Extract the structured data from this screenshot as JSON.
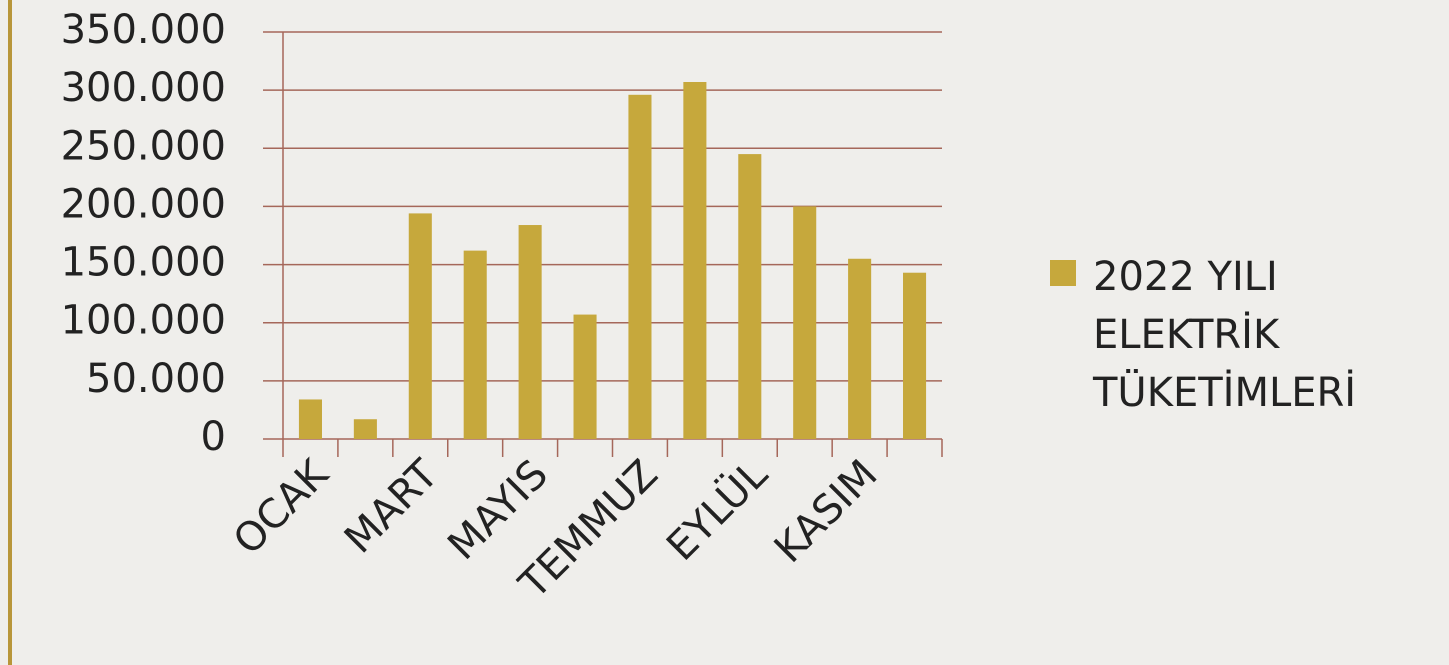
{
  "chart_data": {
    "type": "bar",
    "categories": [
      "OCAK",
      null,
      "MART",
      null,
      "MAYIS",
      null,
      "TEMMUZ",
      null,
      "EYLÜL",
      null,
      "KASIM",
      null
    ],
    "series": [
      {
        "name": "2022 YILI ELEKTRİK TÜKETİMLERİ",
        "color": "#c6a83c",
        "values": [
          34000,
          17000,
          194000,
          162000,
          184000,
          107000,
          296000,
          307000,
          245000,
          200000,
          155000,
          143000
        ]
      }
    ],
    "ylim": [
      0,
      350000
    ],
    "yticks": [
      0,
      {
        "value": 50000,
        "label": "50.000"
      },
      {
        "value": 100000,
        "label": "100.000"
      },
      {
        "value": 150000,
        "label": "150.000"
      },
      {
        "value": 200000,
        "label": "200.000"
      },
      {
        "value": 250000,
        "label": "250.000"
      },
      {
        "value": 300000,
        "label": "300.000"
      },
      {
        "value": 350000,
        "label": "350.000"
      }
    ],
    "grid": true,
    "legend": "right"
  }
}
